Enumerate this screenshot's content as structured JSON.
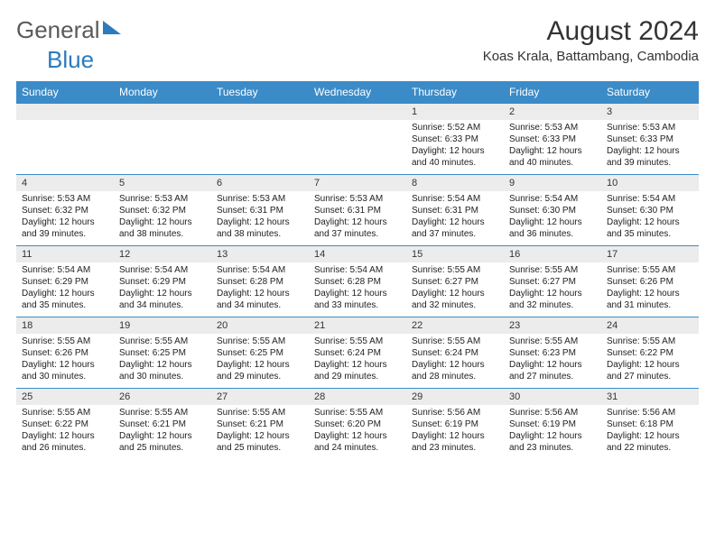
{
  "brand": {
    "wordGeneral": "General",
    "wordBlue": "Blue"
  },
  "header": {
    "monthTitle": "August 2024",
    "location": "Koas Krala, Battambang, Cambodia"
  },
  "style": {
    "headerBg": "#3b8bc8",
    "headerText": "#ffffff",
    "dateRowBg": "#ececec",
    "textColor": "#222222",
    "brandGray": "#5a5a5a",
    "brandBlue": "#2b7bbd"
  },
  "dayNames": [
    "Sunday",
    "Monday",
    "Tuesday",
    "Wednesday",
    "Thursday",
    "Friday",
    "Saturday"
  ],
  "weeks": [
    {
      "dates": [
        "",
        "",
        "",
        "",
        "1",
        "2",
        "3"
      ],
      "details": [
        null,
        null,
        null,
        null,
        {
          "sunrise": "Sunrise: 5:52 AM",
          "sunset": "Sunset: 6:33 PM",
          "d1": "Daylight: 12 hours",
          "d2": "and 40 minutes."
        },
        {
          "sunrise": "Sunrise: 5:53 AM",
          "sunset": "Sunset: 6:33 PM",
          "d1": "Daylight: 12 hours",
          "d2": "and 40 minutes."
        },
        {
          "sunrise": "Sunrise: 5:53 AM",
          "sunset": "Sunset: 6:33 PM",
          "d1": "Daylight: 12 hours",
          "d2": "and 39 minutes."
        }
      ]
    },
    {
      "dates": [
        "4",
        "5",
        "6",
        "7",
        "8",
        "9",
        "10"
      ],
      "details": [
        {
          "sunrise": "Sunrise: 5:53 AM",
          "sunset": "Sunset: 6:32 PM",
          "d1": "Daylight: 12 hours",
          "d2": "and 39 minutes."
        },
        {
          "sunrise": "Sunrise: 5:53 AM",
          "sunset": "Sunset: 6:32 PM",
          "d1": "Daylight: 12 hours",
          "d2": "and 38 minutes."
        },
        {
          "sunrise": "Sunrise: 5:53 AM",
          "sunset": "Sunset: 6:31 PM",
          "d1": "Daylight: 12 hours",
          "d2": "and 38 minutes."
        },
        {
          "sunrise": "Sunrise: 5:53 AM",
          "sunset": "Sunset: 6:31 PM",
          "d1": "Daylight: 12 hours",
          "d2": "and 37 minutes."
        },
        {
          "sunrise": "Sunrise: 5:54 AM",
          "sunset": "Sunset: 6:31 PM",
          "d1": "Daylight: 12 hours",
          "d2": "and 37 minutes."
        },
        {
          "sunrise": "Sunrise: 5:54 AM",
          "sunset": "Sunset: 6:30 PM",
          "d1": "Daylight: 12 hours",
          "d2": "and 36 minutes."
        },
        {
          "sunrise": "Sunrise: 5:54 AM",
          "sunset": "Sunset: 6:30 PM",
          "d1": "Daylight: 12 hours",
          "d2": "and 35 minutes."
        }
      ]
    },
    {
      "dates": [
        "11",
        "12",
        "13",
        "14",
        "15",
        "16",
        "17"
      ],
      "details": [
        {
          "sunrise": "Sunrise: 5:54 AM",
          "sunset": "Sunset: 6:29 PM",
          "d1": "Daylight: 12 hours",
          "d2": "and 35 minutes."
        },
        {
          "sunrise": "Sunrise: 5:54 AM",
          "sunset": "Sunset: 6:29 PM",
          "d1": "Daylight: 12 hours",
          "d2": "and 34 minutes."
        },
        {
          "sunrise": "Sunrise: 5:54 AM",
          "sunset": "Sunset: 6:28 PM",
          "d1": "Daylight: 12 hours",
          "d2": "and 34 minutes."
        },
        {
          "sunrise": "Sunrise: 5:54 AM",
          "sunset": "Sunset: 6:28 PM",
          "d1": "Daylight: 12 hours",
          "d2": "and 33 minutes."
        },
        {
          "sunrise": "Sunrise: 5:55 AM",
          "sunset": "Sunset: 6:27 PM",
          "d1": "Daylight: 12 hours",
          "d2": "and 32 minutes."
        },
        {
          "sunrise": "Sunrise: 5:55 AM",
          "sunset": "Sunset: 6:27 PM",
          "d1": "Daylight: 12 hours",
          "d2": "and 32 minutes."
        },
        {
          "sunrise": "Sunrise: 5:55 AM",
          "sunset": "Sunset: 6:26 PM",
          "d1": "Daylight: 12 hours",
          "d2": "and 31 minutes."
        }
      ]
    },
    {
      "dates": [
        "18",
        "19",
        "20",
        "21",
        "22",
        "23",
        "24"
      ],
      "details": [
        {
          "sunrise": "Sunrise: 5:55 AM",
          "sunset": "Sunset: 6:26 PM",
          "d1": "Daylight: 12 hours",
          "d2": "and 30 minutes."
        },
        {
          "sunrise": "Sunrise: 5:55 AM",
          "sunset": "Sunset: 6:25 PM",
          "d1": "Daylight: 12 hours",
          "d2": "and 30 minutes."
        },
        {
          "sunrise": "Sunrise: 5:55 AM",
          "sunset": "Sunset: 6:25 PM",
          "d1": "Daylight: 12 hours",
          "d2": "and 29 minutes."
        },
        {
          "sunrise": "Sunrise: 5:55 AM",
          "sunset": "Sunset: 6:24 PM",
          "d1": "Daylight: 12 hours",
          "d2": "and 29 minutes."
        },
        {
          "sunrise": "Sunrise: 5:55 AM",
          "sunset": "Sunset: 6:24 PM",
          "d1": "Daylight: 12 hours",
          "d2": "and 28 minutes."
        },
        {
          "sunrise": "Sunrise: 5:55 AM",
          "sunset": "Sunset: 6:23 PM",
          "d1": "Daylight: 12 hours",
          "d2": "and 27 minutes."
        },
        {
          "sunrise": "Sunrise: 5:55 AM",
          "sunset": "Sunset: 6:22 PM",
          "d1": "Daylight: 12 hours",
          "d2": "and 27 minutes."
        }
      ]
    },
    {
      "dates": [
        "25",
        "26",
        "27",
        "28",
        "29",
        "30",
        "31"
      ],
      "details": [
        {
          "sunrise": "Sunrise: 5:55 AM",
          "sunset": "Sunset: 6:22 PM",
          "d1": "Daylight: 12 hours",
          "d2": "and 26 minutes."
        },
        {
          "sunrise": "Sunrise: 5:55 AM",
          "sunset": "Sunset: 6:21 PM",
          "d1": "Daylight: 12 hours",
          "d2": "and 25 minutes."
        },
        {
          "sunrise": "Sunrise: 5:55 AM",
          "sunset": "Sunset: 6:21 PM",
          "d1": "Daylight: 12 hours",
          "d2": "and 25 minutes."
        },
        {
          "sunrise": "Sunrise: 5:55 AM",
          "sunset": "Sunset: 6:20 PM",
          "d1": "Daylight: 12 hours",
          "d2": "and 24 minutes."
        },
        {
          "sunrise": "Sunrise: 5:56 AM",
          "sunset": "Sunset: 6:19 PM",
          "d1": "Daylight: 12 hours",
          "d2": "and 23 minutes."
        },
        {
          "sunrise": "Sunrise: 5:56 AM",
          "sunset": "Sunset: 6:19 PM",
          "d1": "Daylight: 12 hours",
          "d2": "and 23 minutes."
        },
        {
          "sunrise": "Sunrise: 5:56 AM",
          "sunset": "Sunset: 6:18 PM",
          "d1": "Daylight: 12 hours",
          "d2": "and 22 minutes."
        }
      ]
    }
  ]
}
